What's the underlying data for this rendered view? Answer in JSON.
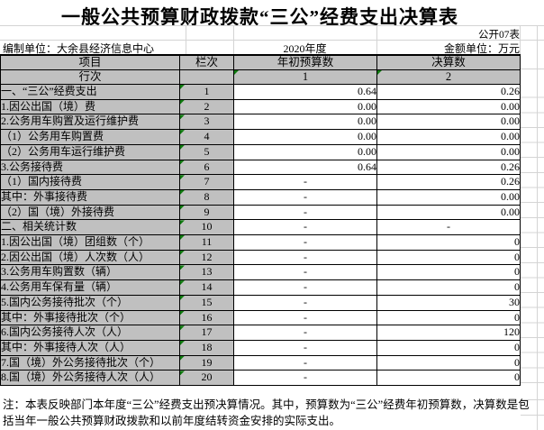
{
  "colors": {
    "cell_grey": "#c0c0c0",
    "triangle_green": "#107c10",
    "border_black": "#000000",
    "gridline_grey": "#d4d4d4"
  },
  "header": {
    "title": "一般公共预算财政拨款“三公”经费支出决算表",
    "table_code": "公开07表",
    "org": "编制单位：大余县经济信息中心",
    "year": "2020年度",
    "unit": "金额单位：万元"
  },
  "table": {
    "columns": {
      "item": "项目",
      "line": "栏次",
      "budget": "年初预算数",
      "final": "决算数"
    },
    "subheader": {
      "item": "行次",
      "line": "",
      "budget": "1",
      "final": "2"
    },
    "rows": [
      {
        "item": "一、“三公”经费支出",
        "line": "1",
        "budget": "0.64",
        "final": "0.26",
        "indent": 0
      },
      {
        "item": "1.因公出国（境）费",
        "line": "2",
        "budget": "0.00",
        "final": "0.00",
        "indent": 1
      },
      {
        "item": "2.公务用车购置及运行维护费",
        "line": "3",
        "budget": "0.00",
        "final": "0.00",
        "indent": 1
      },
      {
        "item": "（1）公务用车购置费",
        "line": "4",
        "budget": "0.00",
        "final": "0.00",
        "indent": 2
      },
      {
        "item": "（2）公务用车运行维护费",
        "line": "5",
        "budget": "0.00",
        "final": "0.00",
        "indent": 2
      },
      {
        "item": "3.公务接待费",
        "line": "6",
        "budget": "0.64",
        "final": "0.26",
        "indent": 1
      },
      {
        "item": "（1）国内接待费",
        "line": "7",
        "budget": "-",
        "final": "0.26",
        "indent": 2
      },
      {
        "item": "其中：外事接待费",
        "line": "8",
        "budget": "-",
        "final": "0.00",
        "indent": 4
      },
      {
        "item": "（2）国（境）外接待费",
        "line": "9",
        "budget": "-",
        "final": "0.00",
        "indent": 2
      },
      {
        "item": "二、相关统计数",
        "line": "10",
        "budget": "-",
        "final": "-",
        "indent": 0
      },
      {
        "item": "1.因公出国（境）团组数（个）",
        "line": "11",
        "budget": "-",
        "final": "0",
        "indent": 1
      },
      {
        "item": "2.因公出国（境）人次数（人）",
        "line": "12",
        "budget": "-",
        "final": "0",
        "indent": 1
      },
      {
        "item": "3.公务用车购置数（辆）",
        "line": "13",
        "budget": "-",
        "final": "0",
        "indent": 1
      },
      {
        "item": "4.公务用车保有量（辆）",
        "line": "14",
        "budget": "-",
        "final": "0",
        "indent": 1
      },
      {
        "item": "5.国内公务接待批次（个）",
        "line": "15",
        "budget": "-",
        "final": "30",
        "indent": 1
      },
      {
        "item": "其中：外事接待批次（个）",
        "line": "16",
        "budget": "-",
        "final": "0",
        "indent": 3
      },
      {
        "item": "6.国内公务接待人次（人）",
        "line": "17",
        "budget": "-",
        "final": "120",
        "indent": 1
      },
      {
        "item": "其中：外事接待人次（人）",
        "line": "18",
        "budget": "-",
        "final": "0",
        "indent": 3
      },
      {
        "item": "7.国（境）外公务接待批次（个）",
        "line": "19",
        "budget": "-",
        "final": "0",
        "indent": 1
      },
      {
        "item": "8.国（境）外公务接待人次（人）",
        "line": "20",
        "budget": "-",
        "final": "0",
        "indent": 1
      }
    ]
  },
  "note": "注：本表反映部门本年度“三公”经费支出预决算情况。其中，预算数为“三公”经费年初预算数，决算数是包括当年一般公共预算财政拨款和以前年度结转资金安排的实际支出。"
}
